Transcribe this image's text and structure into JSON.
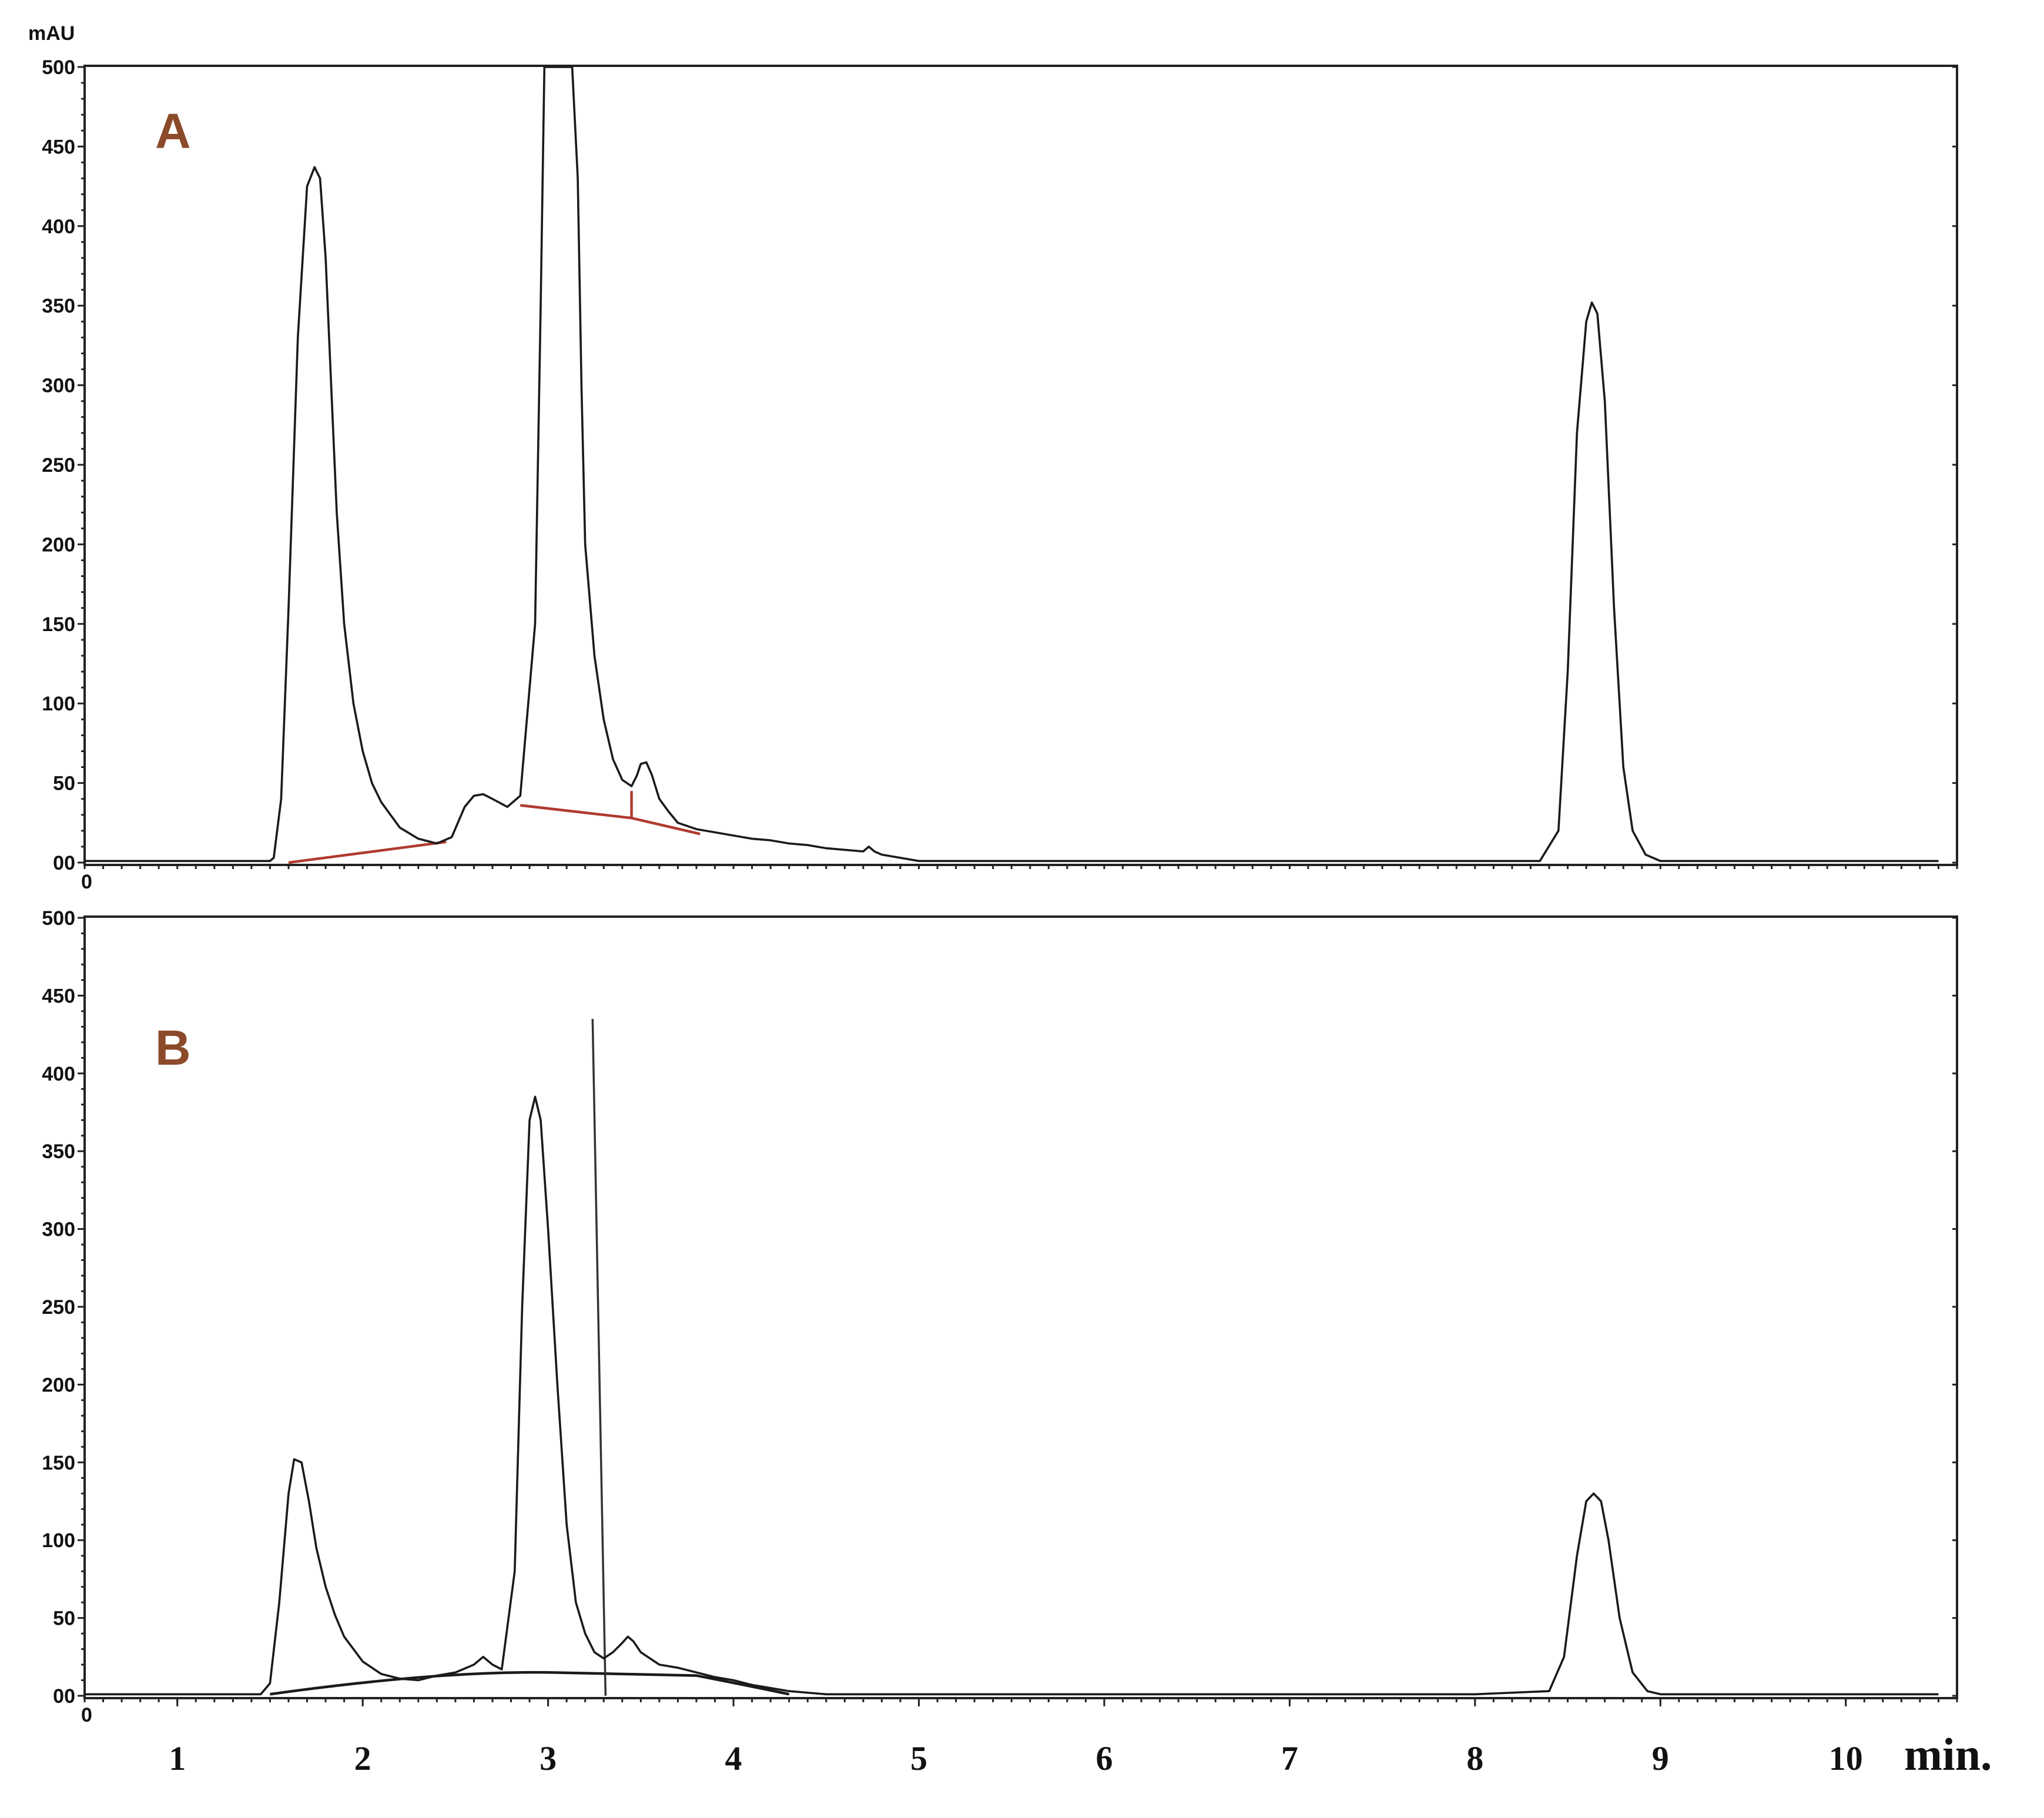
{
  "chart_data": [
    {
      "type": "line",
      "panel_label": "A",
      "ylabel": "mAU",
      "xlabel": "min.",
      "ylim": [
        0,
        500
      ],
      "xlim": [
        0.5,
        10.6
      ],
      "yticks": [
        0,
        50,
        100,
        150,
        200,
        250,
        300,
        350,
        400,
        450,
        500
      ],
      "ytick_labels": [
        "00",
        "50",
        "100",
        "150",
        "200",
        "250",
        "300",
        "350",
        "400",
        "450",
        "500"
      ],
      "x_origin_label": "0",
      "grid": false,
      "colors": {
        "trace": "#1a1a1a",
        "baseline": "#b03a2e",
        "panel_label": "#8b4a2a"
      },
      "series": [
        {
          "x": [
            0.5,
            1.0,
            1.5,
            1.52,
            1.56,
            1.6,
            1.65,
            1.7,
            1.74,
            1.77,
            1.8,
            1.83,
            1.86,
            1.9,
            1.95,
            2.0,
            2.05,
            2.1,
            2.15,
            2.2,
            2.3,
            2.4,
            2.48,
            2.55,
            2.6,
            2.65,
            2.7,
            2.78,
            2.85,
            2.93,
            2.96,
            2.98,
            3.0,
            3.05,
            3.1,
            3.13,
            3.16,
            3.18,
            3.2,
            3.25,
            3.3,
            3.35,
            3.4,
            3.45,
            3.48,
            3.5,
            3.53,
            3.56,
            3.6,
            3.65,
            3.7,
            3.8,
            3.9,
            4.0,
            4.1,
            4.2,
            4.3,
            4.4,
            4.5,
            4.6,
            4.7,
            4.73,
            4.76,
            4.8,
            4.9,
            5.0,
            5.5,
            6.0,
            7.0,
            8.0,
            8.35,
            8.45,
            8.5,
            8.55,
            8.6,
            8.63,
            8.66,
            8.7,
            8.75,
            8.8,
            8.85,
            8.92,
            9.0,
            9.5,
            10.0,
            10.5
          ],
          "y": [
            1,
            1,
            1,
            3,
            40,
            160,
            330,
            425,
            437,
            430,
            380,
            300,
            220,
            150,
            100,
            70,
            50,
            38,
            30,
            22,
            15,
            12,
            16,
            35,
            42,
            43,
            40,
            35,
            42,
            150,
            350,
            500,
            500,
            500,
            500,
            500,
            430,
            300,
            200,
            130,
            90,
            65,
            52,
            48,
            55,
            62,
            63,
            55,
            40,
            32,
            25,
            21,
            19,
            17,
            15,
            14,
            12,
            11,
            9,
            8,
            7,
            10,
            7,
            5,
            3,
            1,
            1,
            1,
            1,
            1,
            1,
            20,
            120,
            270,
            340,
            352,
            345,
            290,
            160,
            60,
            20,
            5,
            1,
            1,
            1,
            1
          ]
        }
      ]
    },
    {
      "type": "line",
      "panel_label": "B",
      "ylabel": "",
      "xlabel": "min.",
      "ylim": [
        0,
        500
      ],
      "xlim": [
        0.5,
        10.6
      ],
      "yticks": [
        0,
        50,
        100,
        150,
        200,
        250,
        300,
        350,
        400,
        450,
        500
      ],
      "ytick_labels": [
        "00",
        "50",
        "100",
        "150",
        "200",
        "250",
        "300",
        "350",
        "400",
        "450",
        "500"
      ],
      "xticks": [
        1,
        2,
        3,
        4,
        5,
        6,
        7,
        8,
        9,
        10
      ],
      "xtick_labels": [
        "1",
        "2",
        "3",
        "4",
        "5",
        "6",
        "7",
        "8",
        "9",
        "10"
      ],
      "x_origin_label": "0",
      "grid": false,
      "colors": {
        "trace": "#1a1a1a",
        "baseline": "#1a1a1a",
        "panel_label": "#8b4a2a"
      },
      "series": [
        {
          "x": [
            0.5,
            1.0,
            1.45,
            1.5,
            1.55,
            1.6,
            1.63,
            1.67,
            1.71,
            1.75,
            1.8,
            1.85,
            1.9,
            2.0,
            2.1,
            2.2,
            2.3,
            2.4,
            2.5,
            2.6,
            2.65,
            2.7,
            2.75,
            2.82,
            2.86,
            2.9,
            2.93,
            2.96,
            3.0,
            3.05,
            3.1,
            3.15,
            3.2,
            3.25,
            3.3,
            3.35,
            3.4,
            3.43,
            3.46,
            3.5,
            3.6,
            3.7,
            3.8,
            3.9,
            4.0,
            4.1,
            4.2,
            4.3,
            4.5,
            5.0,
            6.0,
            7.0,
            8.0,
            8.4,
            8.48,
            8.55,
            8.6,
            8.64,
            8.68,
            8.72,
            8.78,
            8.85,
            8.93,
            9.0,
            9.1,
            9.5,
            10.0,
            10.5
          ],
          "y": [
            1,
            1,
            1,
            8,
            60,
            130,
            152,
            150,
            125,
            95,
            70,
            52,
            38,
            22,
            14,
            11,
            10,
            13,
            15,
            20,
            25,
            20,
            17,
            80,
            250,
            370,
            385,
            370,
            300,
            200,
            110,
            60,
            40,
            28,
            24,
            28,
            34,
            38,
            35,
            28,
            20,
            18,
            15,
            12,
            10,
            7,
            5,
            3,
            1,
            1,
            1,
            1,
            1,
            3,
            25,
            90,
            125,
            130,
            125,
            100,
            50,
            15,
            3,
            1,
            1,
            1,
            1,
            1
          ]
        }
      ]
    }
  ]
}
